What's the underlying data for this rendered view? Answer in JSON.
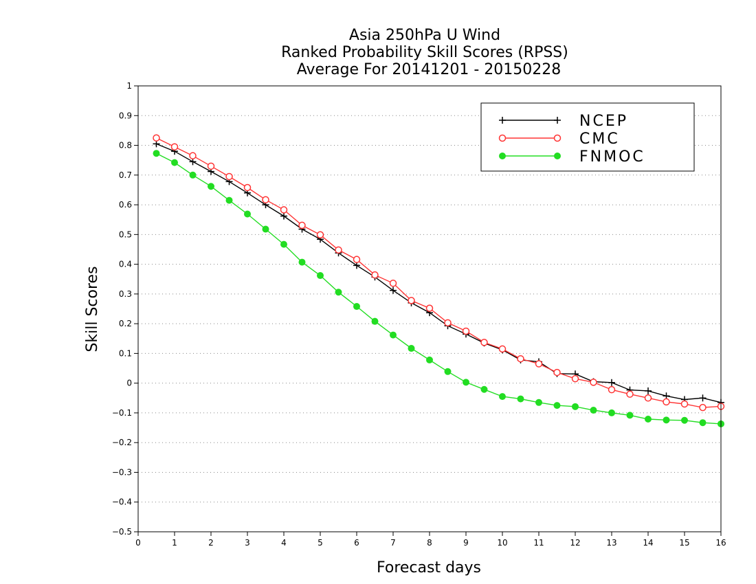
{
  "chart_data": {
    "type": "line",
    "title": [
      "Asia 250hPa U Wind",
      "Ranked Probability Skill Scores (RPSS)",
      "Average For 20141201 - 20150228"
    ],
    "xlabel": "Forecast days",
    "ylabel": "Skill Scores",
    "xlim": [
      0,
      16
    ],
    "ylim": [
      -0.5,
      1
    ],
    "xticks": [
      0,
      1,
      2,
      3,
      4,
      5,
      6,
      7,
      8,
      9,
      10,
      11,
      12,
      13,
      14,
      15,
      16
    ],
    "xtick_labels": [
      "0",
      "1",
      "2",
      "3",
      "4",
      "5",
      "6",
      "7",
      "8",
      "9",
      "10",
      "11",
      "12",
      "13",
      "14",
      "15",
      "16"
    ],
    "yticks": [
      -0.5,
      -0.4,
      -0.3,
      -0.2,
      -0.1,
      0,
      0.1,
      0.2,
      0.3,
      0.4,
      0.5,
      0.6,
      0.7,
      0.8,
      0.9,
      1
    ],
    "ytick_labels": [
      "−0.5",
      "−0.4",
      "−0.3",
      "−0.2",
      "−0.1",
      "0",
      "0.1",
      "0.2",
      "0.3",
      "0.4",
      "0.5",
      "0.6",
      "0.7",
      "0.8",
      "0.9",
      "1"
    ],
    "grid": "horizontal dotted",
    "legend_position": "top-right",
    "x": [
      0.5,
      1,
      1.5,
      2,
      2.5,
      3,
      3.5,
      4,
      4.5,
      5,
      5.5,
      6,
      6.5,
      7,
      7.5,
      8,
      8.5,
      9,
      9.5,
      10,
      10.5,
      11,
      11.5,
      12,
      12.5,
      13,
      13.5,
      14,
      14.5,
      15,
      15.5,
      16
    ],
    "series": [
      {
        "name": "NCEP",
        "color": "#000000",
        "marker": "plus",
        "values": [
          0.805,
          0.78,
          0.745,
          0.712,
          0.678,
          0.64,
          0.6,
          0.562,
          0.518,
          0.484,
          0.438,
          0.396,
          0.357,
          0.312,
          0.27,
          0.237,
          0.193,
          0.165,
          0.135,
          0.112,
          0.078,
          0.072,
          0.032,
          0.031,
          0.005,
          0.002,
          -0.023,
          -0.026,
          -0.043,
          -0.055,
          -0.05,
          -0.065
        ]
      },
      {
        "name": "CMC",
        "color": "#ff3333",
        "marker": "open-circle",
        "values": [
          0.825,
          0.795,
          0.765,
          0.73,
          0.695,
          0.658,
          0.617,
          0.583,
          0.531,
          0.499,
          0.448,
          0.416,
          0.364,
          0.336,
          0.278,
          0.252,
          0.203,
          0.175,
          0.137,
          0.115,
          0.082,
          0.065,
          0.036,
          0.015,
          0.003,
          -0.022,
          -0.037,
          -0.05,
          -0.063,
          -0.07,
          -0.082,
          -0.078
        ]
      },
      {
        "name": "FNMOC",
        "color": "#22dd22",
        "marker": "filled-circle",
        "values": [
          0.773,
          0.742,
          0.7,
          0.662,
          0.615,
          0.569,
          0.518,
          0.467,
          0.407,
          0.362,
          0.306,
          0.258,
          0.208,
          0.162,
          0.117,
          0.078,
          0.039,
          0.003,
          -0.021,
          -0.045,
          -0.053,
          -0.065,
          -0.075,
          -0.079,
          -0.091,
          -0.1,
          -0.108,
          -0.121,
          -0.124,
          -0.125,
          -0.133,
          -0.137
        ]
      }
    ]
  }
}
